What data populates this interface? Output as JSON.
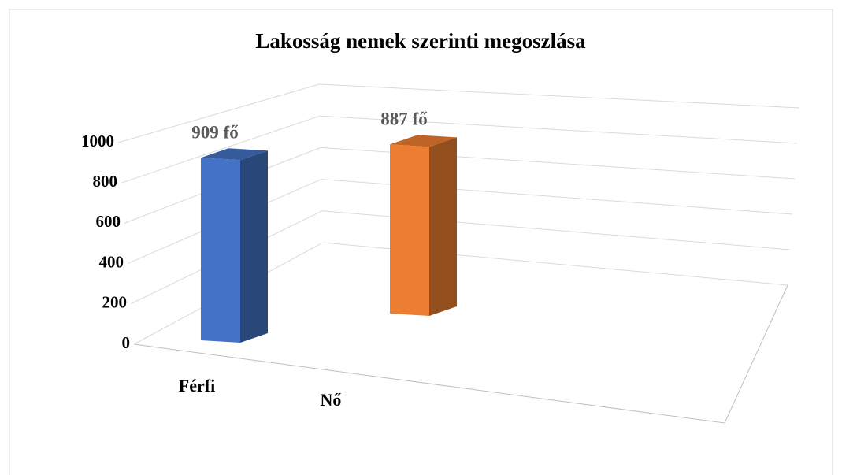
{
  "chart_data": {
    "type": "bar3d",
    "title": "Lakosság nemek szerinti megoszlása",
    "categories": [
      "Férfi",
      "Nő"
    ],
    "values": [
      909,
      887
    ],
    "value_labels": [
      "909 fő",
      "887 fő"
    ],
    "colors": [
      "#4472c4",
      "#ed7d31"
    ],
    "ylim": [
      0,
      1000
    ],
    "yticks": [
      0,
      200,
      400,
      600,
      800,
      1000
    ],
    "grid": true
  }
}
